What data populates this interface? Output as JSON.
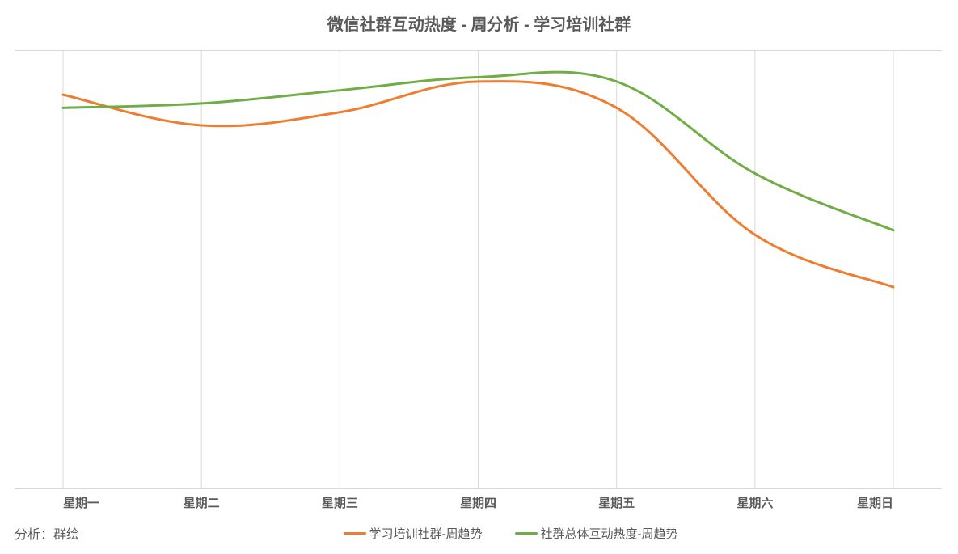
{
  "chart": {
    "type": "line",
    "title": "微信社群互动热度 - 周分析 - 学习培训社群",
    "title_fontsize": 20,
    "title_fontweight": 700,
    "title_color": "#595959",
    "background_color": "#ffffff",
    "grid_color": "#d9d9d9",
    "line_width": 3,
    "smooth": true,
    "x_categories": [
      "星期一",
      "星期二",
      "星期三",
      "星期四",
      "星期五",
      "星期六",
      "星期日"
    ],
    "x_label_fontsize": 15,
    "x_label_fontweight": 700,
    "x_label_color": "#595959",
    "ylim": [
      0,
      100
    ],
    "y_axis_visible": false,
    "y_ticks_visible": false,
    "series": [
      {
        "name": "学习培训社群-周趋势",
        "color": "#ed7d31",
        "values": [
          90,
          83,
          86,
          93,
          87,
          58,
          46
        ]
      },
      {
        "name": "社群总体互动热度-周趋势",
        "color": "#70ad47",
        "values": [
          87,
          88,
          91,
          94,
          93,
          72,
          59
        ]
      }
    ],
    "source_label": "分析：群绘",
    "source_fontsize": 16,
    "source_color": "#595959",
    "legend_fontsize": 15,
    "legend_color": "#595959"
  }
}
